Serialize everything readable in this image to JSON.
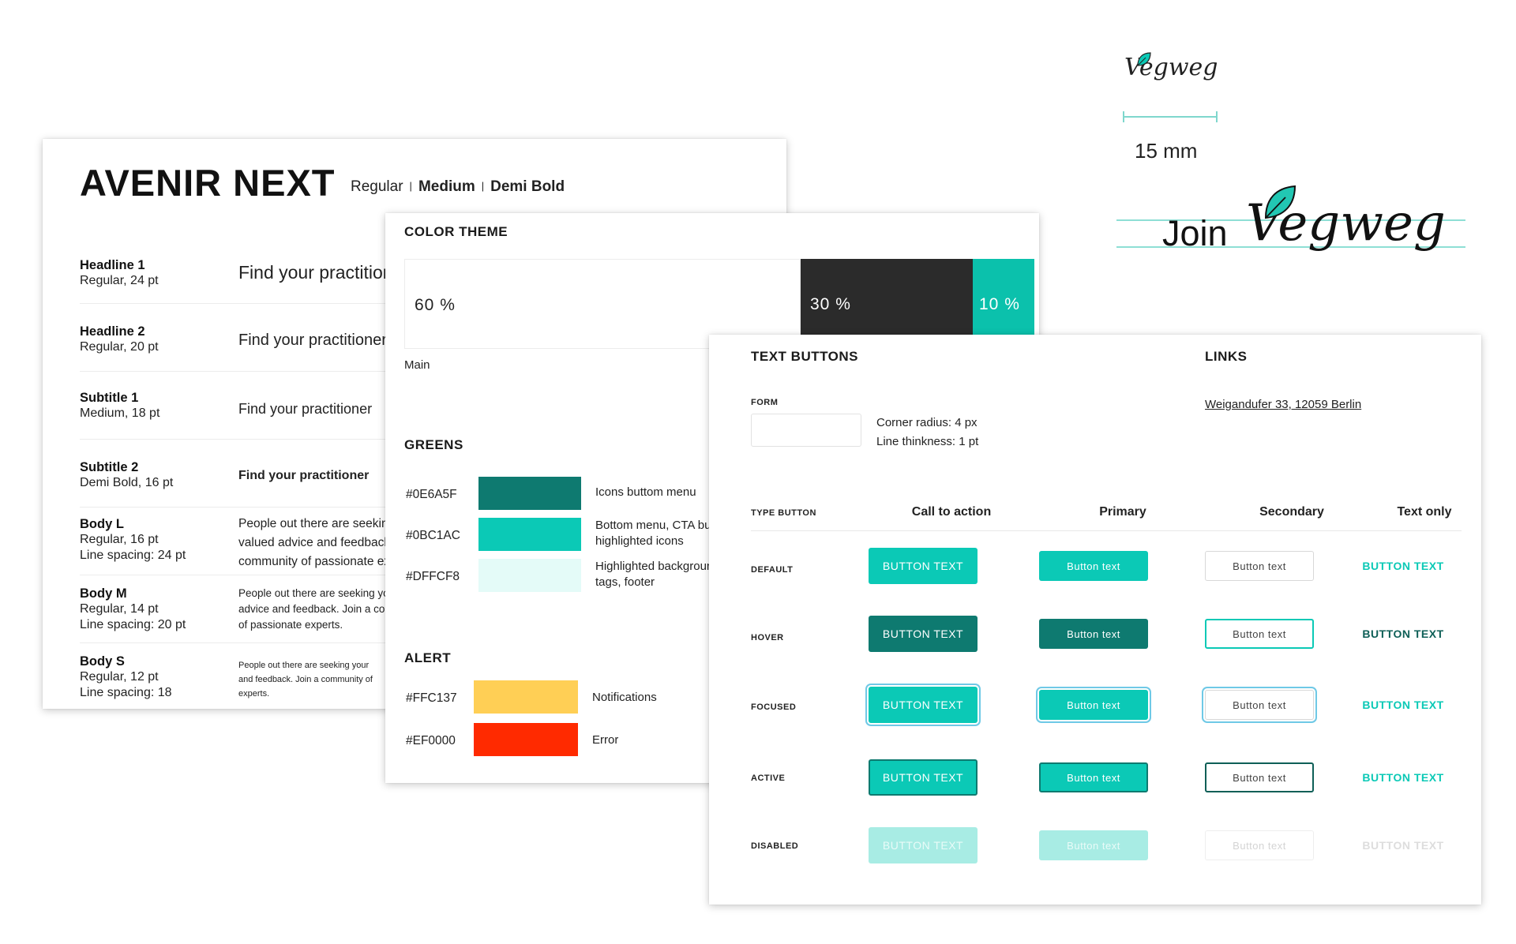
{
  "typography": {
    "font_name": "AVENIR NEXT",
    "weights": [
      "Regular",
      "Medium",
      "Demi Bold"
    ],
    "rows": [
      {
        "name": "Headline 1",
        "spec": [
          "Regular, 24 pt"
        ],
        "sample": "Find your practitioner"
      },
      {
        "name": "Headline 2",
        "spec": [
          "Regular, 20 pt"
        ],
        "sample": "Find your practitioner"
      },
      {
        "name": "Subtitle 1",
        "spec": [
          "Medium, 18 pt"
        ],
        "sample": "Find your practitioner"
      },
      {
        "name": "Subtitle 2",
        "spec": [
          "Demi Bold, 16 pt"
        ],
        "sample": "Find your practitioner"
      },
      {
        "name": "Body L",
        "spec": [
          "Regular, 16 pt",
          "Line spacing: 24 pt"
        ],
        "sample": [
          "People out there are seeking",
          "valued advice and feedback",
          "community of passionate experts."
        ]
      },
      {
        "name": "Body M",
        "spec": [
          "Regular, 14 pt",
          "Line spacing: 20 pt"
        ],
        "sample": [
          "People out there are seeking your",
          "advice and feedback. Join a community",
          "of passionate experts."
        ]
      },
      {
        "name": "Body S",
        "spec": [
          "Regular, 12 pt",
          "Line spacing: 18"
        ],
        "sample": [
          "People out there are seeking your",
          "and feedback. Join a community of",
          "experts."
        ]
      }
    ]
  },
  "color_theme": {
    "title": "COLOR THEME",
    "split": [
      {
        "pct": "60 %",
        "color": "#ffffff",
        "caption": "Main"
      },
      {
        "pct": "30 %",
        "color": "#2b2b2b"
      },
      {
        "pct": "10 %",
        "color": "#0bc1ac"
      }
    ],
    "greens_title": "GREENS",
    "greens": [
      {
        "hex": "#0E6A5F",
        "color": "#0e7a70",
        "desc": [
          "Icons buttom menu"
        ]
      },
      {
        "hex": "#0BC1AC",
        "color": "#0bc9b6",
        "desc": [
          "Bottom menu, CTA buttons,",
          "highlighted icons"
        ]
      },
      {
        "hex": "#DFFCF8",
        "color": "#e4fbf8",
        "desc": [
          "Highlighted background,",
          "tags, footer"
        ]
      }
    ],
    "alert_title": "ALERT",
    "alerts": [
      {
        "hex": "#FFC137",
        "color": "#ffcf55",
        "desc": [
          "Notifications"
        ]
      },
      {
        "hex": "#EF0000",
        "color": "#ff2a00",
        "desc": [
          "Error"
        ]
      }
    ]
  },
  "text_buttons": {
    "title": "TEXT BUTTONS",
    "form_label": "FORM",
    "corner_radius": "Corner radius: 4 px",
    "line_thickness": "Line thinkness: 1 pt",
    "type_label": "TYPE BUTTON",
    "columns": [
      "Call to action",
      "Primary",
      "Secondary",
      "Text only"
    ],
    "states": [
      "DEFAULT",
      "HOVER",
      "FOCUSED",
      "ACTIVE",
      "DISABLED"
    ],
    "cta_text": "BUTTON TEXT",
    "primary_text": "Button text",
    "secondary_text": "Button text",
    "textonly_text": "BUTTON TEXT",
    "colors": {
      "teal": "#0bc9b6",
      "dark_teal": "#0e7a70",
      "disabled": "#a8ece4"
    }
  },
  "links": {
    "title": "LINKS",
    "example": "Weigandufer 33, 12059 Berlin"
  },
  "logo": {
    "small_logo": "Vegweg",
    "measure": "15 mm",
    "join": "Join",
    "big_logo": "Vegweg"
  }
}
